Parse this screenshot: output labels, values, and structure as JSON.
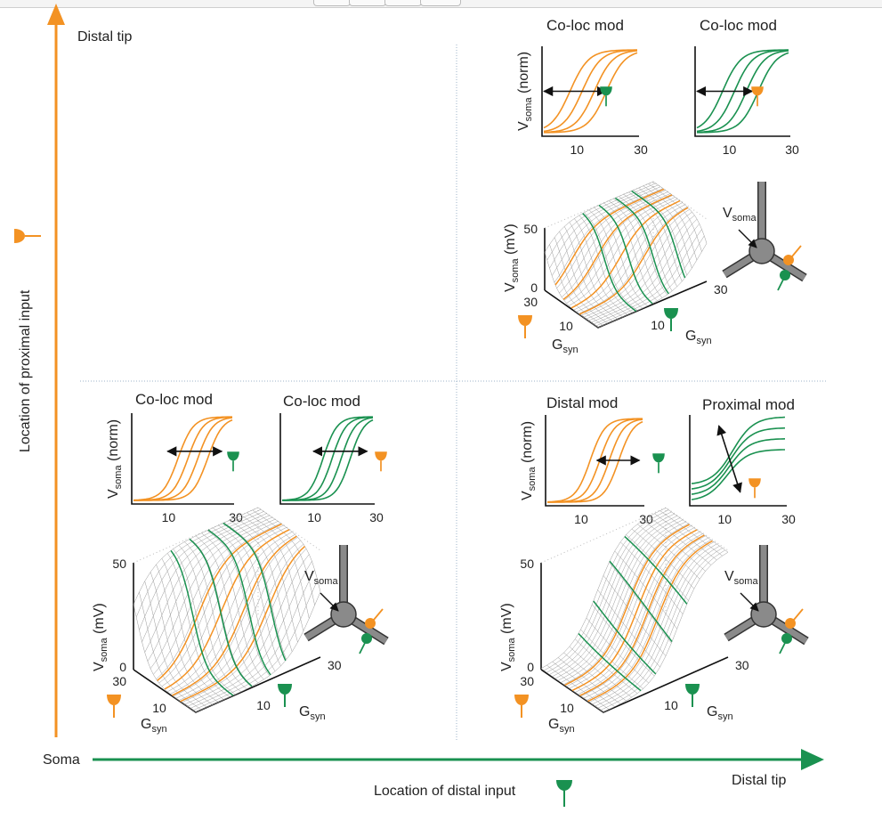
{
  "colors": {
    "orange": "#f39223",
    "green": "#1a9150",
    "divider": "#9cb3c9",
    "axis": "#111111",
    "mesh": "#9a9a9a",
    "dend": "#8a8a8a"
  },
  "axes": {
    "vertical_top_label": "Distal tip",
    "vertical_label": "Location of proximal input",
    "horizontal_left_label": "Soma",
    "horizontal_right_label": "Distal tip",
    "horizontal_label": "Location of distal input"
  },
  "units": {
    "vsoma_norm": [
      "V",
      "soma",
      " (norm)"
    ],
    "vsoma_mv": [
      "V",
      "soma",
      " (mV)"
    ],
    "gsyn": [
      "G",
      "syn"
    ],
    "vsoma": [
      "V",
      "soma"
    ]
  },
  "ticks": {
    "x_left": "10",
    "x_right": "30",
    "z_top": "50",
    "z_bottom": "0",
    "g_near": "10",
    "g_far": "30"
  },
  "panels": {
    "top_right": {
      "left_title": "Co-loc mod",
      "right_title": "Co-loc mod"
    },
    "bottom_left": {
      "left_title": "Co-loc mod",
      "right_title": "Co-loc mod"
    },
    "bottom_right": {
      "left_title": "Distal mod",
      "right_title": "Proximal mod"
    }
  },
  "icons": [
    "orange-synapse-icon",
    "green-synapse-icon",
    "neuron-icon",
    "double-arrow-icon"
  ]
}
